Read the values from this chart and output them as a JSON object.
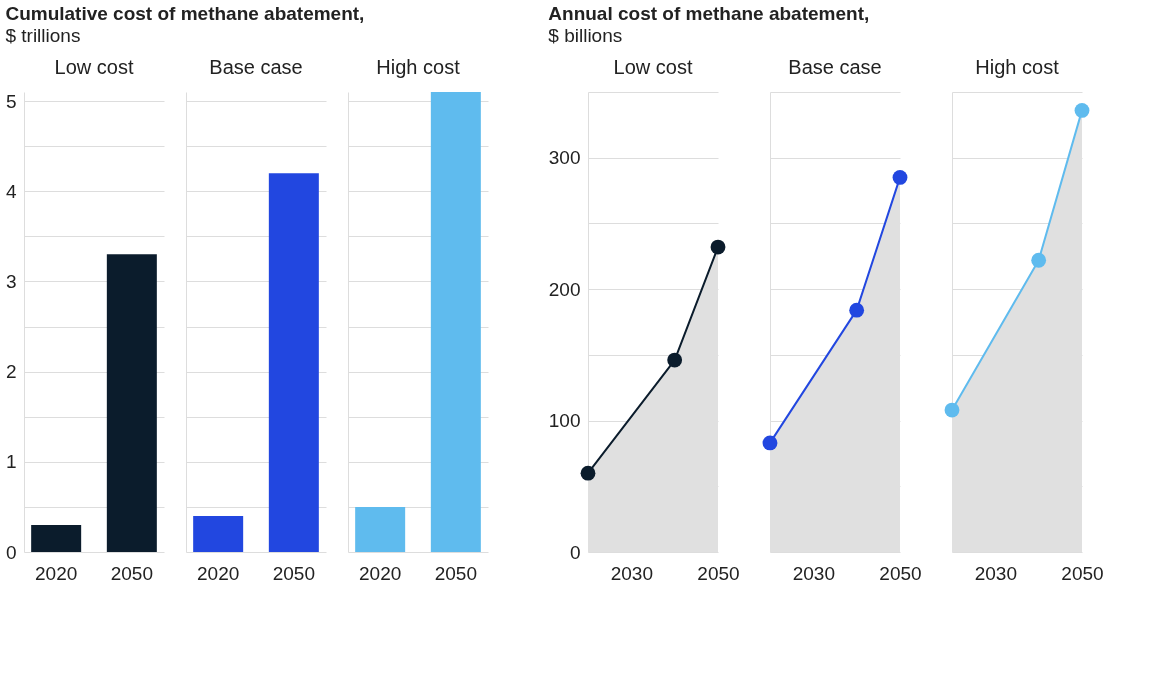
{
  "chart_data": [
    {
      "type": "bar",
      "title": "Cumulative cost of methane abatement,",
      "ylabel": "$ trillions",
      "subtitle": "Low cost",
      "categories": [
        "2020",
        "2050"
      ],
      "values": [
        0.3,
        3.3
      ],
      "colors": [
        "#0b1c2c",
        "#0b1c2c"
      ],
      "ylim": [
        0,
        5.1
      ],
      "yticks": [
        0,
        {
          "value": 0.5,
          "label": null
        },
        1,
        {
          "value": 1.5,
          "label": null
        },
        2,
        {
          "value": 2.5,
          "label": null
        },
        3,
        {
          "value": 3.5,
          "label": null
        },
        4,
        {
          "value": 4.5,
          "label": null
        },
        5
      ],
      "grid": "y"
    },
    {
      "type": "bar",
      "subtitle": "Base case",
      "categories": [
        "2020",
        "2050"
      ],
      "values": [
        0.4,
        4.2
      ],
      "colors": [
        "#2247e0",
        "#2247e0"
      ],
      "ylim": [
        0,
        5.1
      ],
      "yticks": [
        0,
        {
          "value": 0.5,
          "label": null
        },
        1,
        {
          "value": 1.5,
          "label": null
        },
        2,
        {
          "value": 2.5,
          "label": null
        },
        3,
        {
          "value": 3.5,
          "label": null
        },
        4,
        {
          "value": 4.5,
          "label": null
        },
        5
      ],
      "grid": "y",
      "tick_labels": "x"
    },
    {
      "type": "bar",
      "subtitle": "High cost",
      "categories": [
        "2020",
        "2050"
      ],
      "values": [
        0.5,
        5.1
      ],
      "colors": [
        "#5fbbee",
        "#5fbbee"
      ],
      "ylim": [
        0,
        5.1
      ],
      "yticks": [
        0,
        {
          "value": 0.5,
          "label": null
        },
        1,
        {
          "value": 1.5,
          "label": null
        },
        2,
        {
          "value": 2.5,
          "label": null
        },
        3,
        {
          "value": 3.5,
          "label": null
        },
        4,
        {
          "value": 4.5,
          "label": null
        },
        5
      ],
      "grid": "y",
      "tick_labels": "x"
    },
    {
      "type": "line",
      "title": "Annual cost of methane abatement,",
      "ylabel": "$ billions",
      "subtitle": "Low cost",
      "x": [
        2020,
        2040,
        2050
      ],
      "series": [
        {
          "type": "area",
          "color": "#0b1c2c",
          "values": [
            60,
            146,
            232
          ],
          "marker": "circle"
        }
      ],
      "xlim": [
        2020,
        2050
      ],
      "xticks": [
        2030,
        2050
      ],
      "ylim": [
        0,
        350
      ],
      "yticks": [
        0,
        {
          "value": 50,
          "label": null
        },
        100,
        {
          "value": 150,
          "label": null
        },
        200,
        {
          "value": 250,
          "label": null
        },
        300,
        {
          "value": 350,
          "label": null
        }
      ],
      "grid": "y"
    },
    {
      "type": "line",
      "subtitle": "Base case",
      "x": [
        2020,
        2040,
        2050
      ],
      "series": [
        {
          "type": "area",
          "color": "#2247e0",
          "values": [
            83,
            184,
            285
          ],
          "marker": "circle"
        }
      ],
      "xlim": [
        2020,
        2050
      ],
      "xticks": [
        2030,
        2050
      ],
      "ylim": [
        0,
        350
      ],
      "yticks": [
        0,
        {
          "value": 50,
          "label": null
        },
        100,
        {
          "value": 150,
          "label": null
        },
        200,
        {
          "value": 250,
          "label": null
        },
        300,
        {
          "value": 350,
          "label": null
        }
      ],
      "grid": "y",
      "tick_labels": "x"
    },
    {
      "type": "line",
      "subtitle": "High cost",
      "x": [
        2020,
        2040,
        2050
      ],
      "series": [
        {
          "type": "area",
          "color": "#5fbbee",
          "values": [
            108,
            222,
            336
          ],
          "marker": "circle"
        }
      ],
      "xlim": [
        2020,
        2050
      ],
      "xticks": [
        2030,
        2050
      ],
      "ylim": [
        0,
        350
      ],
      "yticks": [
        0,
        {
          "value": 50,
          "label": null
        },
        100,
        {
          "value": 150,
          "label": null
        },
        200,
        {
          "value": 250,
          "label": null
        },
        300,
        {
          "value": 350,
          "label": null
        }
      ],
      "grid": "y",
      "tick_labels": "x"
    }
  ]
}
